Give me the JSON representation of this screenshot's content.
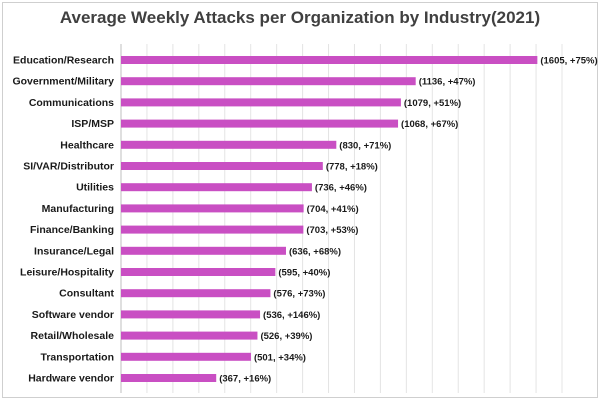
{
  "chart_data": {
    "type": "bar",
    "orientation": "horizontal",
    "title": "Average Weekly Attacks per Organization by Industry(2021)",
    "xlabel": "",
    "ylabel": "",
    "xlim": [
      0,
      1700
    ],
    "grid": true,
    "bar_color": "#c94fc3",
    "categories": [
      "Education/Research",
      "Government/Military",
      "Communications",
      "ISP/MSP",
      "Healthcare",
      "SI/VAR/Distributor",
      "Utilities",
      "Manufacturing",
      "Finance/Banking",
      "Insurance/Legal",
      "Leisure/Hospitality",
      "Consultant",
      "Software vendor",
      "Retail/Wholesale",
      "Transportation",
      "Hardware vendor"
    ],
    "values": [
      1605,
      1136,
      1079,
      1068,
      830,
      778,
      736,
      704,
      703,
      636,
      595,
      576,
      536,
      526,
      501,
      367
    ],
    "data_labels": [
      "(1605, +75%)",
      "(1136, +47%)",
      "(1079, +51%)",
      "(1068, +67%)",
      "(830, +71%)",
      "(778, +18%)",
      "(736, +46%)",
      "(704, +41%)",
      "(703, +53%)",
      "(636, +68%)",
      "(595, +40%)",
      "(576, +73%)",
      "(536, +146%)",
      "(526, +39%)",
      "(501, +34%)",
      "(367, +16%)"
    ]
  }
}
